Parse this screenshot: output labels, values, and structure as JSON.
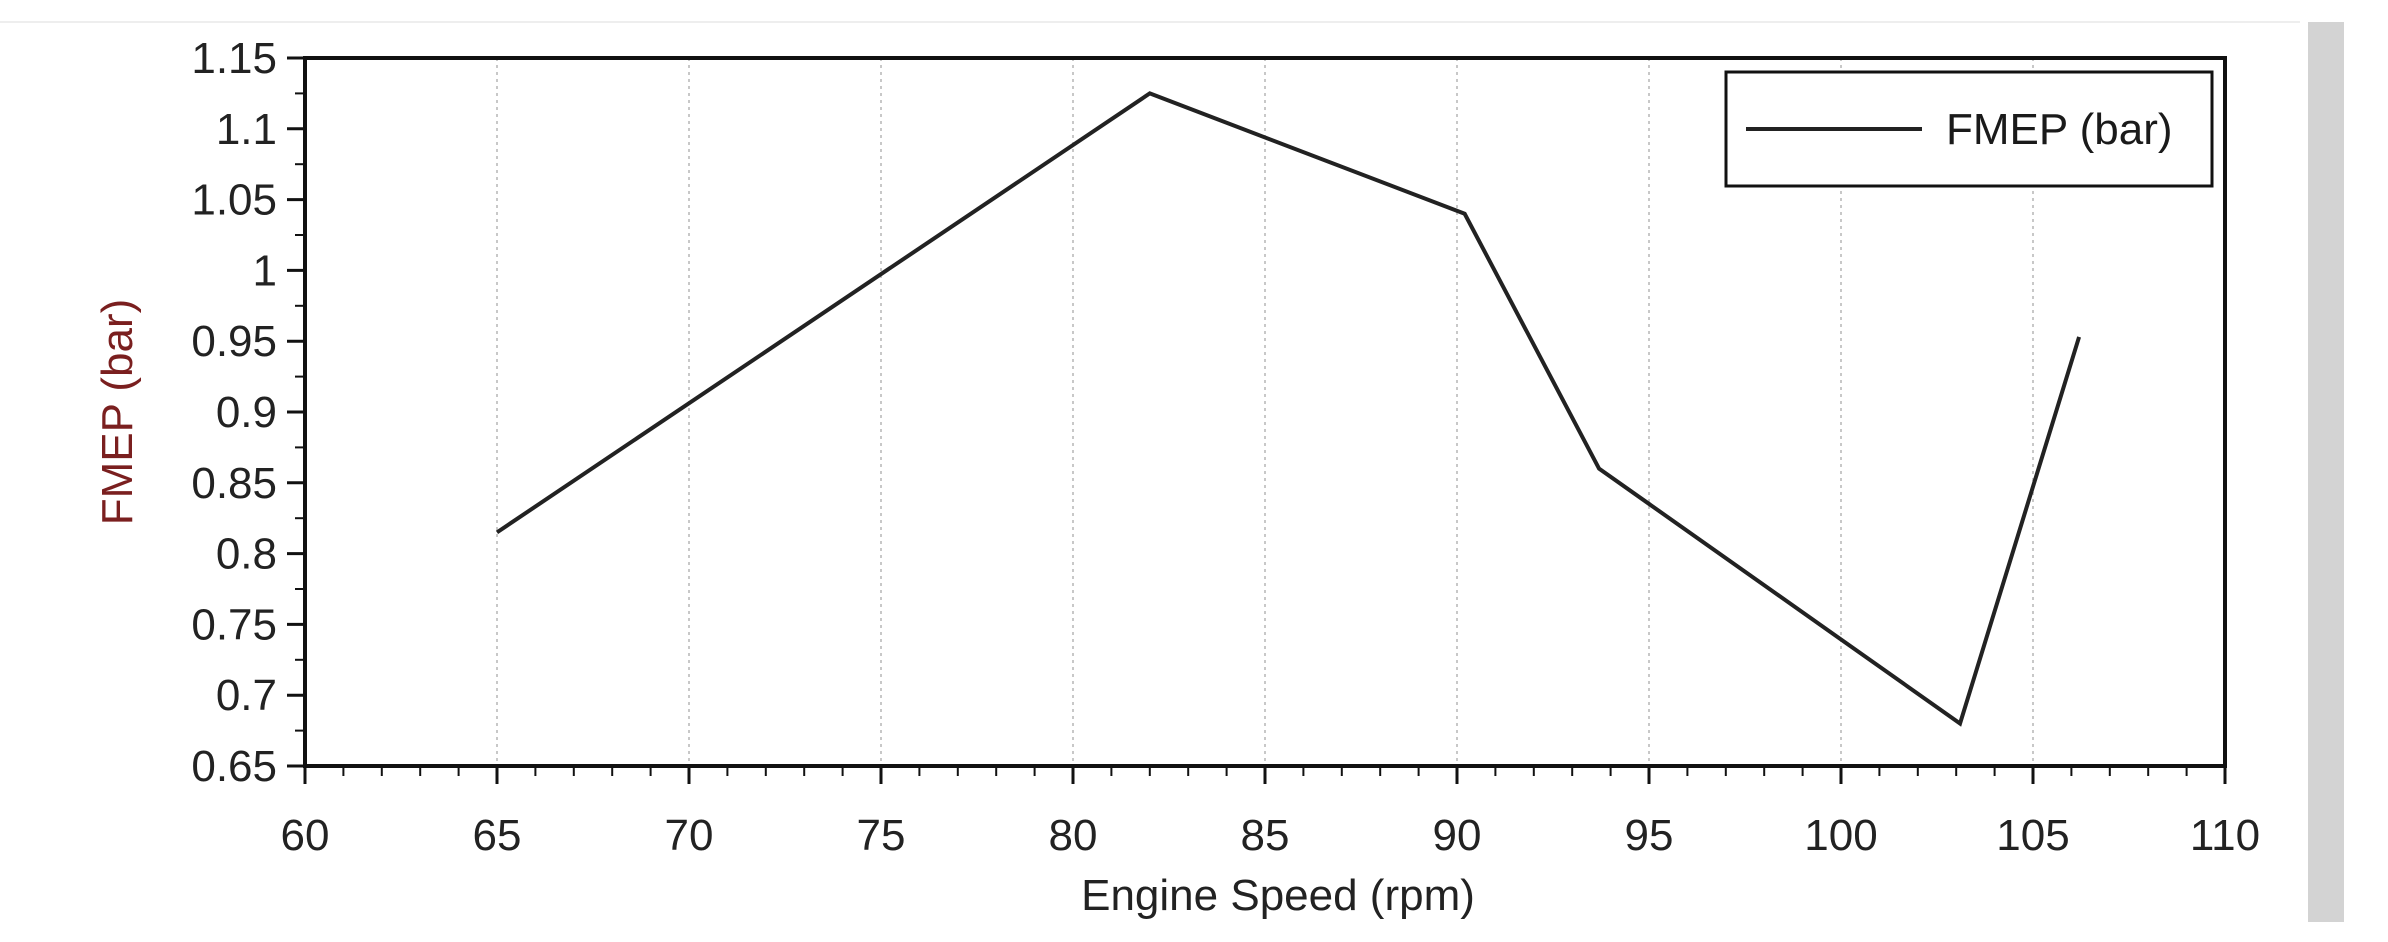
{
  "chart_data": {
    "type": "line",
    "title": "",
    "xlabel": "Engine Speed (rpm)",
    "ylabel": "FMEP (bar)",
    "xlim": [
      60,
      110
    ],
    "ylim": [
      0.65,
      1.15
    ],
    "x_ticks": [
      "60",
      "65",
      "70",
      "75",
      "80",
      "85",
      "90",
      "95",
      "100",
      "105",
      "110"
    ],
    "y_ticks": [
      "0.65",
      "0.7",
      "0.75",
      "0.8",
      "0.85",
      "0.9",
      "0.95",
      "1",
      "1.05",
      "1.1",
      "1.15"
    ],
    "grid": "vertical dotted",
    "legend_position": "top-right",
    "series": [
      {
        "name": "FMEP (bar)",
        "color": "#222222",
        "x": [
          65,
          82,
          90.2,
          93.7,
          103.1,
          106.2
        ],
        "y": [
          0.815,
          1.125,
          1.04,
          0.86,
          0.68,
          0.953
        ]
      }
    ],
    "colors": {
      "ylabel": "#7a1f1f",
      "xlabel": "#222222",
      "line": "#222222",
      "frame": "#111111",
      "grid": "#c8c8c8",
      "scrollbar": "#d3d3d3"
    }
  }
}
